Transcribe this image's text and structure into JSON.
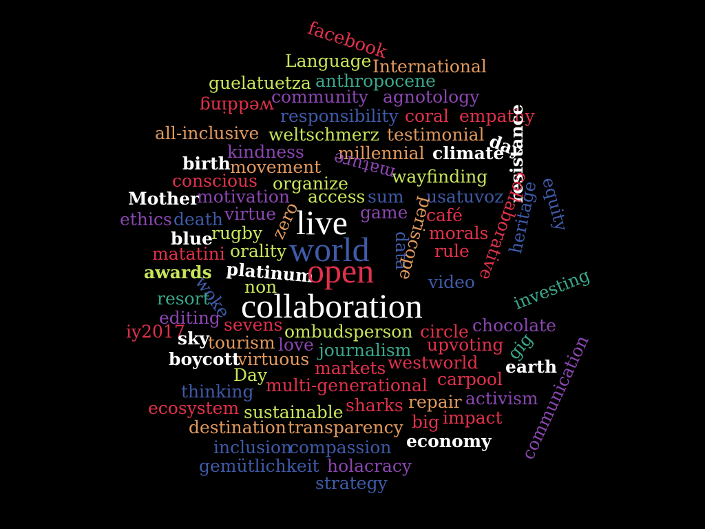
{
  "palette": {
    "red": "#e0314b",
    "dark_red": "#c8102e",
    "orange": "#e0995e",
    "lime": "#c7e55b",
    "teal": "#3aa68b",
    "purple": "#8a46b0",
    "blue": "#3f5aa8",
    "white": "#ffffff",
    "background": "#000000"
  },
  "words": [
    {
      "text": "facebook",
      "color": "red"
    },
    {
      "text": "Language",
      "color": "lime"
    },
    {
      "text": "International",
      "color": "orange"
    },
    {
      "text": "guelatuetza",
      "color": "lime"
    },
    {
      "text": "anthropocene",
      "color": "teal"
    },
    {
      "text": "community",
      "color": "purple"
    },
    {
      "text": "agnotology",
      "color": "purple"
    },
    {
      "text": "wedding",
      "color": "red"
    },
    {
      "text": "responsibility",
      "color": "blue"
    },
    {
      "text": "coral",
      "color": "red"
    },
    {
      "text": "empathy",
      "color": "red"
    },
    {
      "text": "all-inclusive",
      "color": "orange"
    },
    {
      "text": "weltschmerz",
      "color": "lime"
    },
    {
      "text": "testimonial",
      "color": "orange"
    },
    {
      "text": "day",
      "color": "white"
    },
    {
      "text": "kindness",
      "color": "purple"
    },
    {
      "text": "millennial",
      "color": "orange"
    },
    {
      "text": "climate",
      "color": "white"
    },
    {
      "text": "birth",
      "color": "white"
    },
    {
      "text": "movement",
      "color": "orange"
    },
    {
      "text": "mature",
      "color": "purple"
    },
    {
      "text": "conscious",
      "color": "red"
    },
    {
      "text": "organize",
      "color": "lime"
    },
    {
      "text": "wayfinding",
      "color": "lime"
    },
    {
      "text": "Mother",
      "color": "white"
    },
    {
      "text": "motivation",
      "color": "purple"
    },
    {
      "text": "access",
      "color": "lime"
    },
    {
      "text": "sum",
      "color": "blue"
    },
    {
      "text": "usatuvoz",
      "color": "blue"
    },
    {
      "text": "ethics",
      "color": "purple"
    },
    {
      "text": "death",
      "color": "blue"
    },
    {
      "text": "virtue",
      "color": "purple"
    },
    {
      "text": "zero",
      "color": "orange"
    },
    {
      "text": "live",
      "color": "white"
    },
    {
      "text": "game",
      "color": "purple"
    },
    {
      "text": "café",
      "color": "red"
    },
    {
      "text": "blue",
      "color": "white"
    },
    {
      "text": "rugby",
      "color": "lime"
    },
    {
      "text": "world",
      "color": "blue"
    },
    {
      "text": "data",
      "color": "blue"
    },
    {
      "text": "periscope",
      "color": "orange"
    },
    {
      "text": "morals",
      "color": "red"
    },
    {
      "text": "resistance",
      "color": "white"
    },
    {
      "text": "collaborative",
      "color": "red"
    },
    {
      "text": "equity",
      "color": "blue"
    },
    {
      "text": "matatini",
      "color": "red"
    },
    {
      "text": "orality",
      "color": "lime"
    },
    {
      "text": "rule",
      "color": "red"
    },
    {
      "text": "heritage",
      "color": "blue"
    },
    {
      "text": "awards",
      "color": "lime"
    },
    {
      "text": "platinum",
      "color": "white"
    },
    {
      "text": "open",
      "color": "red"
    },
    {
      "text": "video",
      "color": "blue"
    },
    {
      "text": "investing",
      "color": "teal"
    },
    {
      "text": "woke",
      "color": "blue"
    },
    {
      "text": "non",
      "color": "lime"
    },
    {
      "text": "resort",
      "color": "teal"
    },
    {
      "text": "collaboration",
      "color": "white"
    },
    {
      "text": "editing",
      "color": "purple"
    },
    {
      "text": "sevens",
      "color": "red"
    },
    {
      "text": "chocolate",
      "color": "purple"
    },
    {
      "text": "iy2017",
      "color": "red"
    },
    {
      "text": "ombudsperson",
      "color": "lime"
    },
    {
      "text": "circle",
      "color": "red"
    },
    {
      "text": "sky",
      "color": "white"
    },
    {
      "text": "tourism",
      "color": "orange"
    },
    {
      "text": "love",
      "color": "purple"
    },
    {
      "text": "upvoting",
      "color": "red"
    },
    {
      "text": "gig",
      "color": "teal"
    },
    {
      "text": "communication",
      "color": "purple"
    },
    {
      "text": "journalism",
      "color": "teal"
    },
    {
      "text": "boycott",
      "color": "white"
    },
    {
      "text": "virtuous",
      "color": "orange"
    },
    {
      "text": "westworld",
      "color": "red"
    },
    {
      "text": "earth",
      "color": "white"
    },
    {
      "text": "markets",
      "color": "red"
    },
    {
      "text": "Day",
      "color": "lime"
    },
    {
      "text": "carpool",
      "color": "red"
    },
    {
      "text": "multi-generational",
      "color": "red"
    },
    {
      "text": "thinking",
      "color": "blue"
    },
    {
      "text": "activism",
      "color": "purple"
    },
    {
      "text": "ecosystem",
      "color": "red"
    },
    {
      "text": "sharks",
      "color": "red"
    },
    {
      "text": "repair",
      "color": "orange"
    },
    {
      "text": "sustainable",
      "color": "lime"
    },
    {
      "text": "big",
      "color": "red"
    },
    {
      "text": "impact",
      "color": "red"
    },
    {
      "text": "destination",
      "color": "orange"
    },
    {
      "text": "transparency",
      "color": "orange"
    },
    {
      "text": "economy",
      "color": "white"
    },
    {
      "text": "inclusion",
      "color": "blue"
    },
    {
      "text": "compassion",
      "color": "blue"
    },
    {
      "text": "gemütlichkeit",
      "color": "blue"
    },
    {
      "text": "holacracy",
      "color": "purple"
    },
    {
      "text": "strategy",
      "color": "blue"
    }
  ]
}
